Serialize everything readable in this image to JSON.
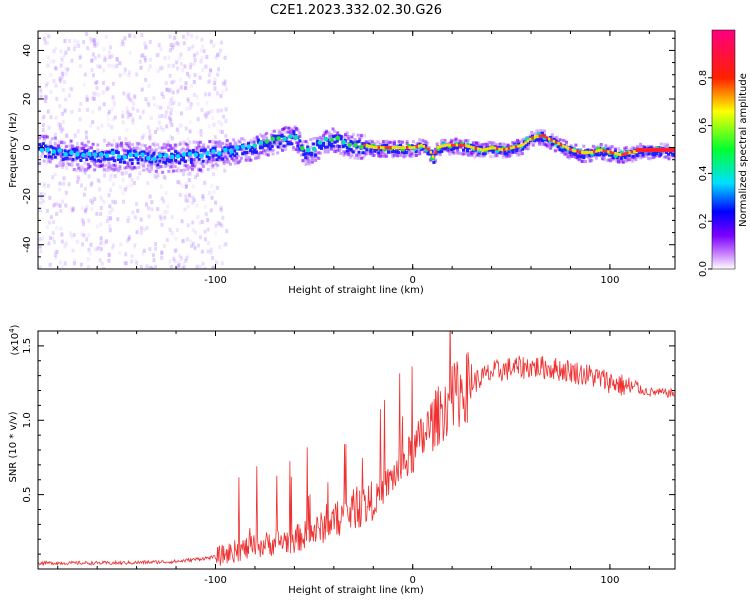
{
  "title": "C2E1.2023.332.02.30.G26",
  "chart_data": [
    {
      "type": "heatmap",
      "name": "spectrogram",
      "title": "C2E1.2023.332.02.30.G26",
      "xlabel": "Height of straight line (km)",
      "ylabel": "Frequency (Hz)",
      "xlim": [
        -190,
        133
      ],
      "ylim": [
        -50,
        48
      ],
      "xticks": [
        -100,
        0,
        100
      ],
      "yticks": [
        -40,
        -20,
        0,
        20,
        40
      ],
      "ridge": {
        "x": [
          -190,
          -170,
          -150,
          -130,
          -110,
          -100,
          -90,
          -80,
          -70,
          -65,
          -60,
          -55,
          -50,
          -45,
          -40,
          -35,
          -30,
          -25,
          -20,
          -15,
          -10,
          -5,
          0,
          4,
          8,
          10,
          12,
          16,
          20,
          25,
          30,
          35,
          40,
          45,
          50,
          55,
          60,
          65,
          70,
          75,
          80,
          85,
          90,
          95,
          100,
          105,
          110,
          115,
          120,
          125,
          133
        ],
        "y": [
          0,
          -3,
          -3,
          -4,
          -3,
          -2,
          -1,
          1,
          3,
          4,
          5,
          -2,
          0,
          3,
          4,
          2,
          1,
          1,
          0,
          0,
          0,
          0,
          0,
          1,
          -1,
          -4,
          0,
          1,
          1,
          1,
          0,
          -1,
          0,
          -1,
          0,
          1,
          4,
          5,
          3,
          1,
          -1,
          -2,
          -2,
          -1,
          -2,
          -3,
          -2,
          -1,
          -1,
          -1,
          -1
        ]
      },
      "colorbar": {
        "label": "Normalized spectral amplitude",
        "ticks": [
          "0.0",
          "0.2",
          "0.4",
          "0.6",
          "0.8"
        ],
        "tick_values": [
          0,
          0.2,
          0.4,
          0.6,
          0.8
        ],
        "range": [
          0,
          1
        ]
      }
    },
    {
      "type": "line",
      "name": "snr",
      "xlabel": "Height of straight line (km)",
      "ylabel": "SNR (10 * v/v)",
      "exponent_label": "(x10",
      "exponent_power": "4",
      "exponent_close": ")",
      "xlim": [
        -190,
        133
      ],
      "ylim": [
        0,
        1.6
      ],
      "xticks": [
        -100,
        0,
        100
      ],
      "yticks": [
        0.5,
        1.0,
        1.5
      ],
      "ytick_labels": [
        "0.5",
        "1.0",
        "1.5"
      ],
      "color": "#ee3030",
      "trend": {
        "x": [
          -190,
          -150,
          -120,
          -100,
          -90,
          -80,
          -70,
          -60,
          -50,
          -40,
          -30,
          -20,
          -10,
          0,
          10,
          20,
          30,
          40,
          50,
          60,
          70,
          80,
          90,
          100,
          110,
          120,
          133
        ],
        "y": [
          0.04,
          0.04,
          0.05,
          0.08,
          0.12,
          0.15,
          0.18,
          0.2,
          0.25,
          0.32,
          0.4,
          0.45,
          0.62,
          0.78,
          0.98,
          1.15,
          1.25,
          1.32,
          1.35,
          1.36,
          1.35,
          1.33,
          1.3,
          1.26,
          1.22,
          1.19,
          1.18
        ]
      }
    }
  ]
}
